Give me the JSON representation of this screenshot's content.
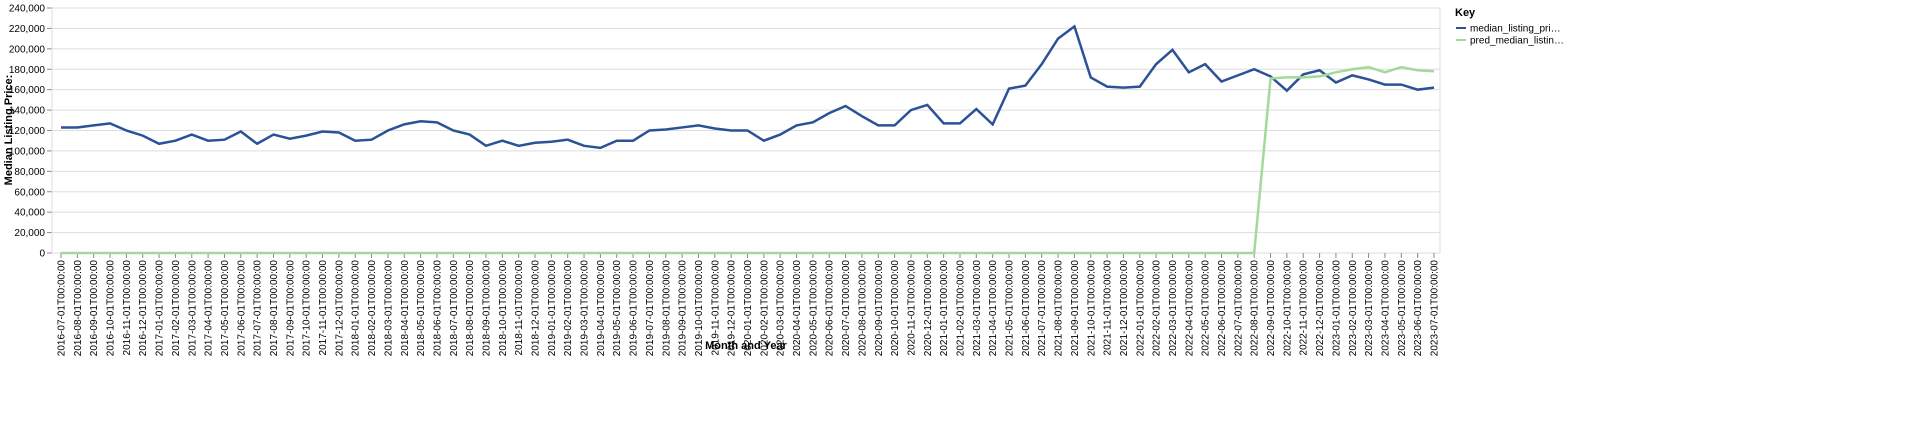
{
  "chart_data": {
    "type": "line",
    "x_label": "Month and Year",
    "y_label": "Median Listing Price:",
    "legend_title": "Key",
    "categories": [
      "2016-07-01T00:00:00",
      "2016-08-01T00:00:00",
      "2016-09-01T00:00:00",
      "2016-10-01T00:00:00",
      "2016-11-01T00:00:00",
      "2016-12-01T00:00:00",
      "2017-01-01T00:00:00",
      "2017-02-01T00:00:00",
      "2017-03-01T00:00:00",
      "2017-04-01T00:00:00",
      "2017-05-01T00:00:00",
      "2017-06-01T00:00:00",
      "2017-07-01T00:00:00",
      "2017-08-01T00:00:00",
      "2017-09-01T00:00:00",
      "2017-10-01T00:00:00",
      "2017-11-01T00:00:00",
      "2017-12-01T00:00:00",
      "2018-01-01T00:00:00",
      "2018-02-01T00:00:00",
      "2018-03-01T00:00:00",
      "2018-04-01T00:00:00",
      "2018-05-01T00:00:00",
      "2018-06-01T00:00:00",
      "2018-07-01T00:00:00",
      "2018-08-01T00:00:00",
      "2018-09-01T00:00:00",
      "2018-10-01T00:00:00",
      "2018-11-01T00:00:00",
      "2018-12-01T00:00:00",
      "2019-01-01T00:00:00",
      "2019-02-01T00:00:00",
      "2019-03-01T00:00:00",
      "2019-04-01T00:00:00",
      "2019-05-01T00:00:00",
      "2019-06-01T00:00:00",
      "2019-07-01T00:00:00",
      "2019-08-01T00:00:00",
      "2019-09-01T00:00:00",
      "2019-10-01T00:00:00",
      "2019-11-01T00:00:00",
      "2019-12-01T00:00:00",
      "2020-01-01T00:00:00",
      "2020-02-01T00:00:00",
      "2020-03-01T00:00:00",
      "2020-04-01T00:00:00",
      "2020-05-01T00:00:00",
      "2020-06-01T00:00:00",
      "2020-07-01T00:00:00",
      "2020-08-01T00:00:00",
      "2020-09-01T00:00:00",
      "2020-10-01T00:00:00",
      "2020-11-01T00:00:00",
      "2020-12-01T00:00:00",
      "2021-01-01T00:00:00",
      "2021-02-01T00:00:00",
      "2021-03-01T00:00:00",
      "2021-04-01T00:00:00",
      "2021-05-01T00:00:00",
      "2021-06-01T00:00:00",
      "2021-07-01T00:00:00",
      "2021-08-01T00:00:00",
      "2021-09-01T00:00:00",
      "2021-10-01T00:00:00",
      "2021-11-01T00:00:00",
      "2021-12-01T00:00:00",
      "2022-01-01T00:00:00",
      "2022-02-01T00:00:00",
      "2022-03-01T00:00:00",
      "2022-04-01T00:00:00",
      "2022-05-01T00:00:00",
      "2022-06-01T00:00:00",
      "2022-07-01T00:00:00",
      "2022-08-01T00:00:00",
      "2022-09-01T00:00:00",
      "2022-10-01T00:00:00",
      "2022-11-01T00:00:00",
      "2022-12-01T00:00:00",
      "2023-01-01T00:00:00",
      "2023-02-01T00:00:00",
      "2023-03-01T00:00:00",
      "2023-04-01T00:00:00",
      "2023-05-01T00:00:00",
      "2023-06-01T00:00:00",
      "2023-07-01T00:00:00"
    ],
    "series": [
      {
        "name": "median_listing_pri…",
        "color": "#2b5197",
        "values": [
          123000,
          123000,
          125000,
          127000,
          120000,
          115000,
          107000,
          110000,
          116000,
          110000,
          111000,
          119000,
          107000,
          116000,
          112000,
          115000,
          119000,
          118000,
          110000,
          111000,
          120000,
          126000,
          129000,
          128000,
          120000,
          116000,
          105000,
          110000,
          105000,
          108000,
          109000,
          111000,
          105000,
          103000,
          110000,
          110000,
          120000,
          121000,
          123000,
          125000,
          122000,
          120000,
          120000,
          110000,
          116000,
          125000,
          128000,
          137000,
          144000,
          134000,
          125000,
          125000,
          140000,
          145000,
          127000,
          127000,
          141000,
          126000,
          161000,
          164000,
          185000,
          210000,
          222000,
          172000,
          163000,
          162000,
          163000,
          185000,
          199000,
          177000,
          185000,
          168000,
          174000,
          180000,
          173000,
          159000,
          175000,
          179000,
          167000,
          174000,
          170000,
          165000,
          165000,
          160000,
          162000
        ]
      },
      {
        "name": "pred_median_listin…",
        "color": "#a3d99a",
        "values": [
          0,
          0,
          0,
          0,
          0,
          0,
          0,
          0,
          0,
          0,
          0,
          0,
          0,
          0,
          0,
          0,
          0,
          0,
          0,
          0,
          0,
          0,
          0,
          0,
          0,
          0,
          0,
          0,
          0,
          0,
          0,
          0,
          0,
          0,
          0,
          0,
          0,
          0,
          0,
          0,
          0,
          0,
          0,
          0,
          0,
          0,
          0,
          0,
          0,
          0,
          0,
          0,
          0,
          0,
          0,
          0,
          0,
          0,
          0,
          0,
          0,
          0,
          0,
          0,
          0,
          0,
          0,
          0,
          0,
          0,
          0,
          0,
          0,
          0,
          171000,
          172000,
          172000,
          173000,
          177000,
          180000,
          182000,
          177000,
          182000,
          179000,
          178000
        ]
      }
    ],
    "ylim": [
      0,
      240000
    ],
    "yticks": [
      0,
      {
        "value": 20000,
        "label": "20,000"
      },
      {
        "value": 40000,
        "label": "40,000"
      },
      {
        "value": 60000,
        "label": "60,000"
      },
      {
        "value": 80000,
        "label": "80,000"
      },
      {
        "value": 100000,
        "label": "100,000"
      },
      {
        "value": 120000,
        "label": "120,000"
      },
      {
        "value": 140000,
        "label": "140,000"
      },
      {
        "value": 160000,
        "label": "160,000"
      },
      {
        "value": 180000,
        "label": "180,000"
      },
      {
        "value": 200000,
        "label": "200,000"
      },
      {
        "value": 220000,
        "label": "220,000"
      },
      {
        "value": 240000,
        "label": "240,000"
      }
    ],
    "grid": true,
    "legend": "right"
  }
}
